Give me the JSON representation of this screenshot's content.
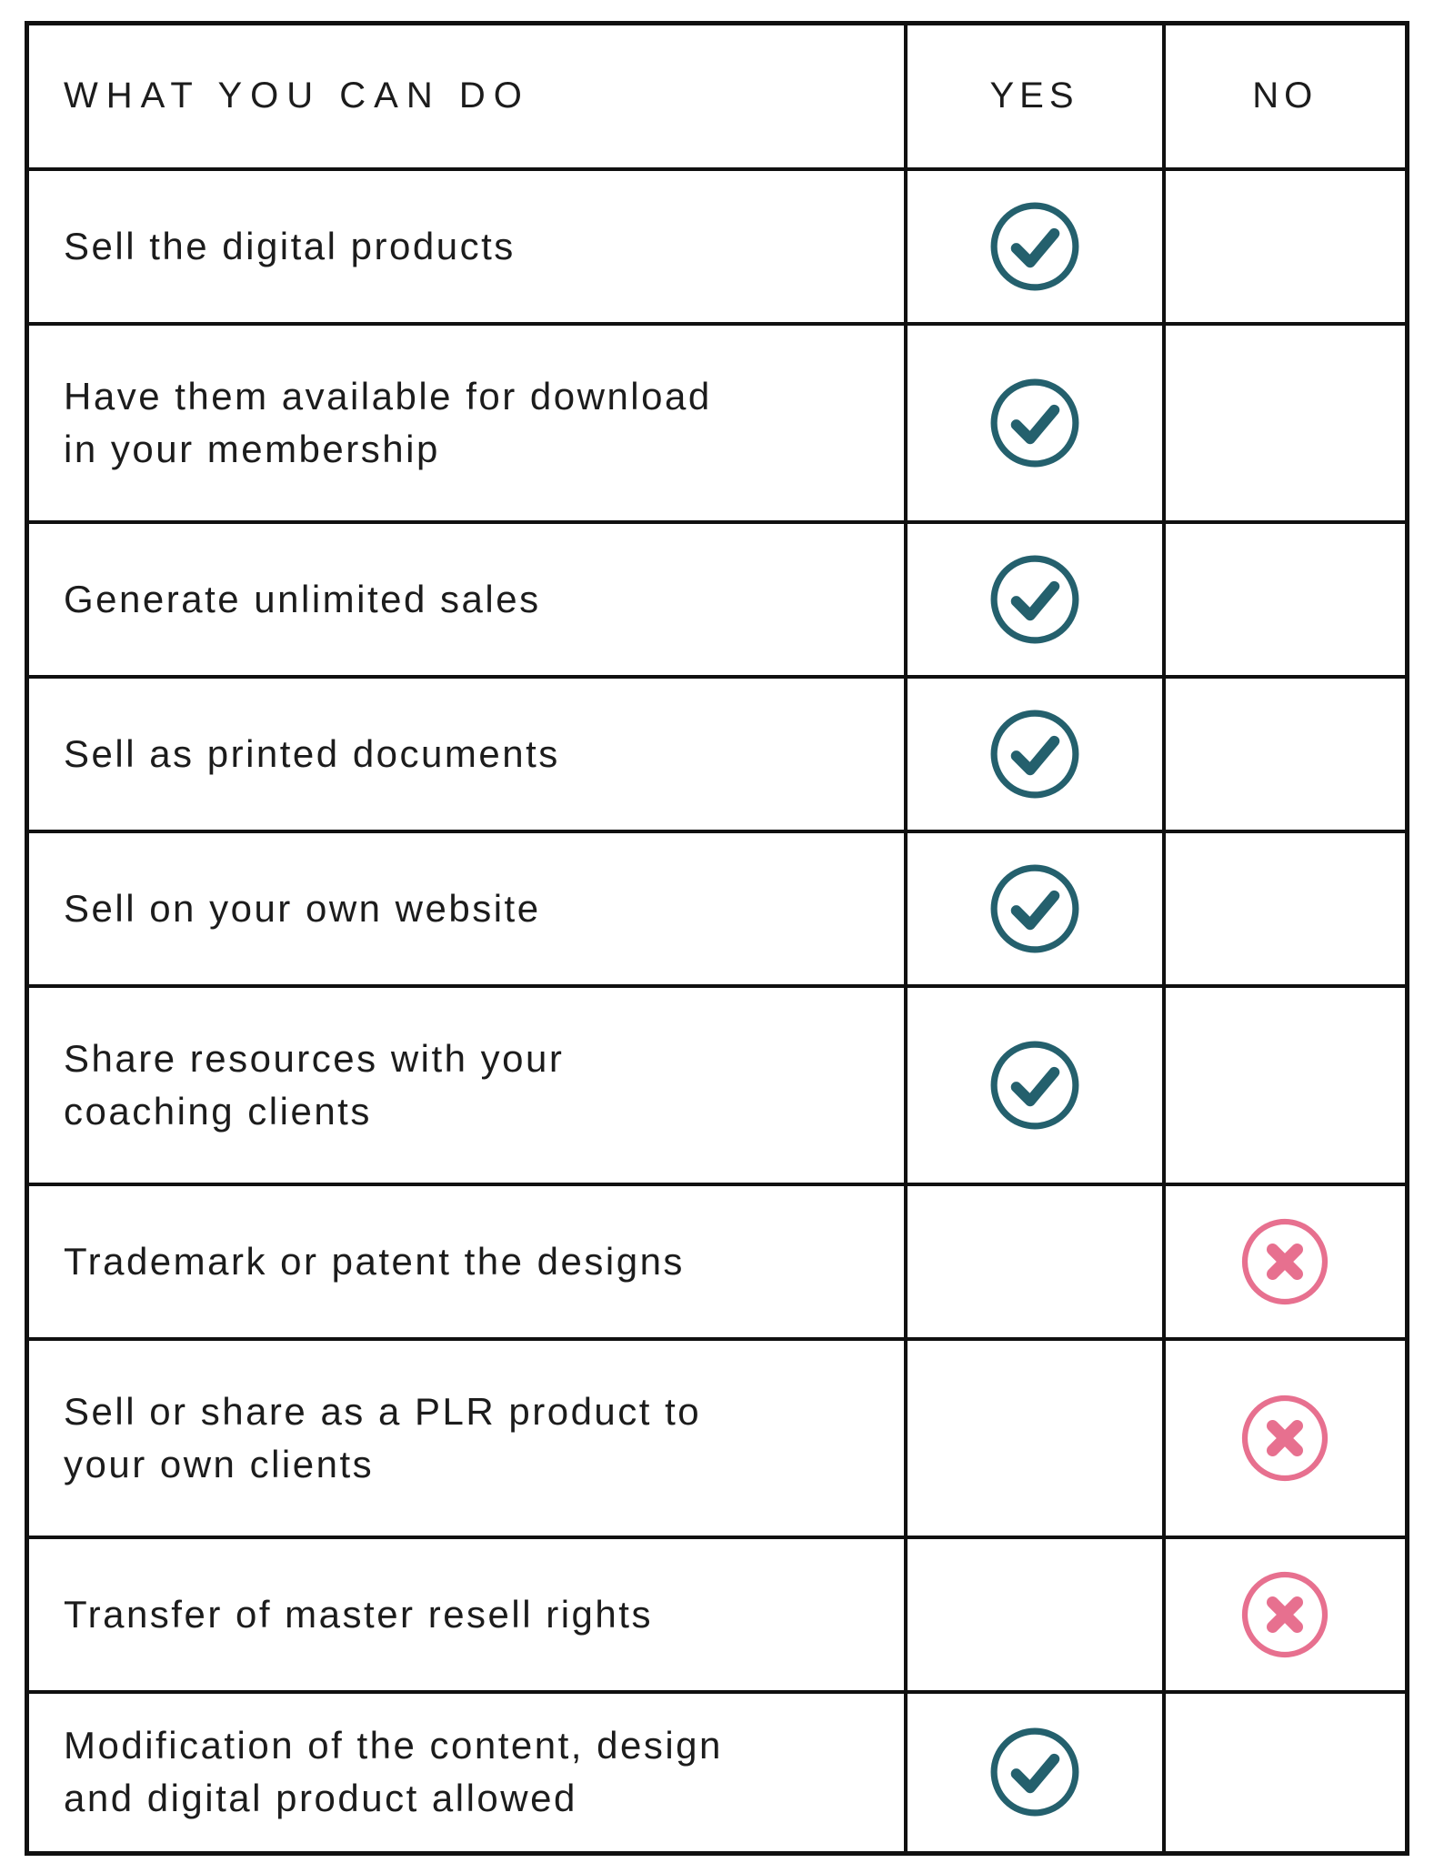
{
  "header": {
    "what": "WHAT YOU CAN DO",
    "yes": "YES",
    "no": "NO"
  },
  "rows": [
    {
      "label": "Sell the digital products",
      "answer": "yes"
    },
    {
      "label": "Have them available for download\nin your membership",
      "answer": "yes"
    },
    {
      "label": "Generate unlimited sales",
      "answer": "yes"
    },
    {
      "label": "Sell as printed documents",
      "answer": "yes"
    },
    {
      "label": "Sell on your own website",
      "answer": "yes"
    },
    {
      "label": "Share resources with your\ncoaching clients",
      "answer": "yes"
    },
    {
      "label": "Trademark or patent the designs",
      "answer": "no"
    },
    {
      "label": "Sell or share as a PLR product to\nyour own clients",
      "answer": "no"
    },
    {
      "label": "Transfer of master resell rights",
      "answer": "no"
    },
    {
      "label": "Modification of the content, design\nand digital product allowed",
      "answer": "yes"
    }
  ],
  "icons": {
    "yes": "check-circle-icon",
    "no": "cross-circle-icon"
  },
  "colors": {
    "check_teal": "#24606d",
    "cross_pink": "#e7708f",
    "border_black": "#101010",
    "text_black": "#1c1c1c",
    "background": "#ffffff"
  }
}
